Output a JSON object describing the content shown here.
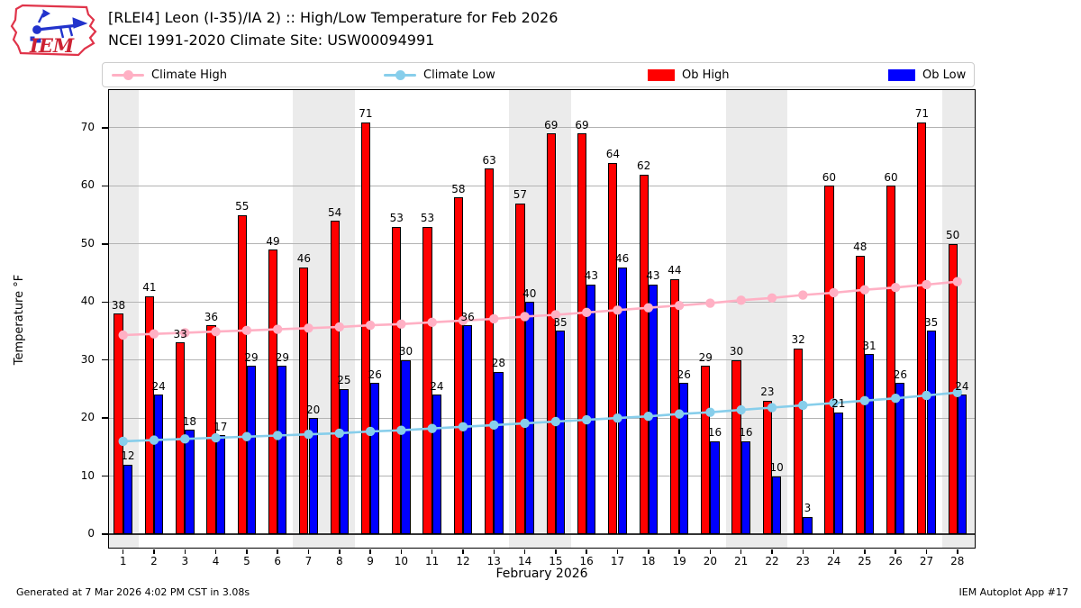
{
  "header": {
    "title": "[RLEI4] Leon (I-35)/IA 2) :: High/Low Temperature for Feb 2026",
    "subtitle": "NCEI 1991-2020 Climate Site: USW00094991"
  },
  "logo": {
    "text": "IEM"
  },
  "footer": {
    "generated": "Generated at 7 Mar 2026 4:02 PM CST in 3.08s",
    "app": "IEM Autoplot App #17"
  },
  "colors": {
    "ob_high": "#ff0000",
    "ob_low": "#0000ff",
    "climate_high": "#ffb0c4",
    "climate_low": "#87ceeb",
    "weekend_band": "#ebebeb",
    "gridline": "#b3b3b3"
  },
  "chart_data": {
    "type": "bar",
    "title": "[RLEI4] Leon (I-35)/IA 2) :: High/Low Temperature for Feb 2026",
    "subtitle": "NCEI 1991-2020 Climate Site: USW00094991",
    "xlabel": "February 2026",
    "ylabel": "Temperature °F",
    "days": [
      1,
      2,
      3,
      4,
      5,
      6,
      7,
      8,
      9,
      10,
      11,
      12,
      13,
      14,
      15,
      16,
      17,
      18,
      19,
      20,
      21,
      22,
      23,
      24,
      25,
      26,
      27,
      28
    ],
    "yticks": [
      0,
      10,
      20,
      30,
      40,
      50,
      60,
      70
    ],
    "ylim": [
      -2.4,
      76.5
    ],
    "grid": "horizontal",
    "legend_position": "top",
    "weekend_bands": [
      [
        0.54,
        1.5
      ],
      [
        6.5,
        8.5
      ],
      [
        13.5,
        15.5
      ],
      [
        20.5,
        22.5
      ],
      [
        27.5,
        28.56
      ]
    ],
    "series": [
      {
        "name": "Climate High",
        "type": "line",
        "color": "#ffb0c4",
        "values": [
          34.3,
          34.5,
          34.7,
          34.9,
          35.1,
          35.3,
          35.5,
          35.7,
          36.0,
          36.2,
          36.5,
          36.8,
          37.1,
          37.5,
          37.8,
          38.2,
          38.6,
          39.0,
          39.4,
          39.8,
          40.3,
          40.7,
          41.2,
          41.6,
          42.1,
          42.5,
          43.0,
          43.5
        ]
      },
      {
        "name": "Climate Low",
        "type": "line",
        "color": "#87ceeb",
        "values": [
          16.0,
          16.2,
          16.4,
          16.6,
          16.8,
          17.0,
          17.2,
          17.4,
          17.7,
          17.9,
          18.2,
          18.5,
          18.8,
          19.1,
          19.4,
          19.7,
          20.0,
          20.3,
          20.7,
          21.0,
          21.4,
          21.8,
          22.2,
          22.6,
          23.0,
          23.4,
          23.9,
          24.4
        ]
      },
      {
        "name": "Ob High",
        "type": "bar",
        "color": "#ff0000",
        "values": [
          38,
          41,
          33,
          36,
          55,
          49,
          46,
          54,
          71,
          53,
          53,
          58,
          63,
          57,
          69,
          69,
          64,
          62,
          44,
          29,
          30,
          23,
          32,
          60,
          48,
          60,
          71,
          50
        ]
      },
      {
        "name": "Ob Low",
        "type": "bar",
        "color": "#0000ff",
        "values": [
          12,
          24,
          18,
          17,
          29,
          29,
          20,
          25,
          26,
          30,
          24,
          36,
          28,
          40,
          35,
          43,
          46,
          43,
          26,
          16,
          16,
          10,
          3,
          21,
          31,
          26,
          35,
          24
        ]
      }
    ]
  }
}
